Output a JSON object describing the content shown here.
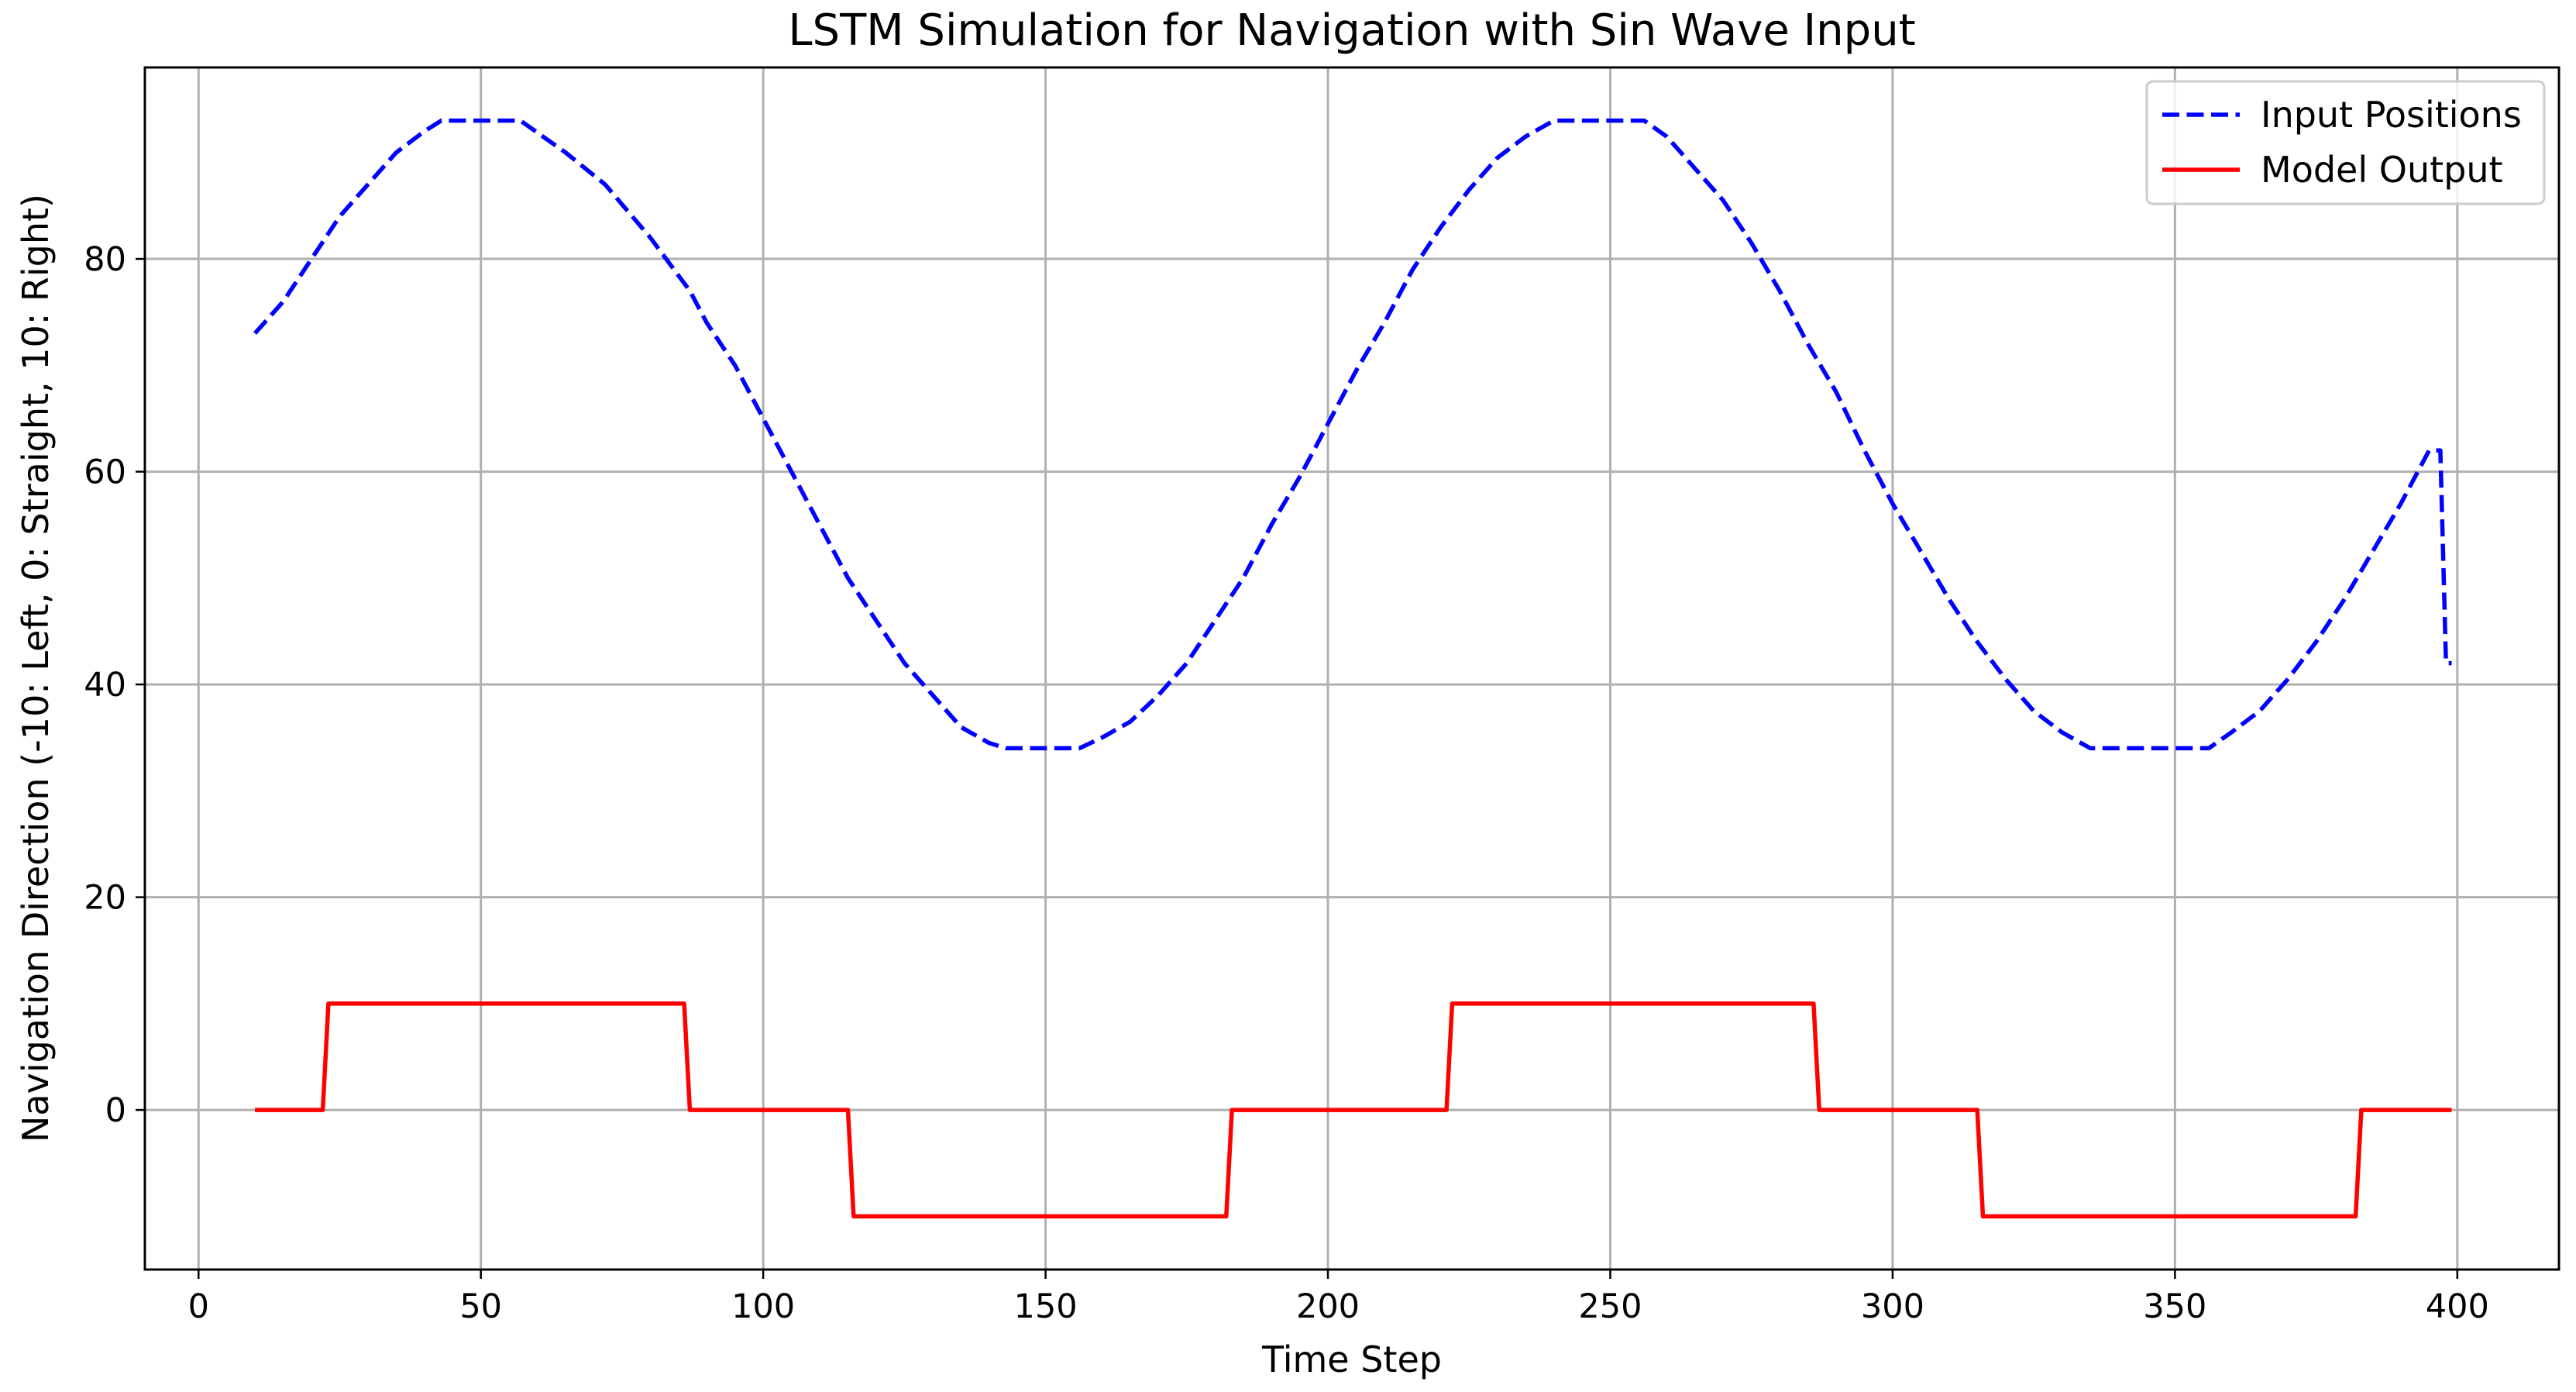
{
  "chart_data": {
    "type": "line",
    "title": "LSTM Simulation for Navigation with Sin Wave Input",
    "xlabel": "Time Step",
    "ylabel": "Navigation Direction (-10: Left, 0: Straight, 10: Right)",
    "xlim": [
      -9.5,
      418
    ],
    "ylim": [
      -15,
      98
    ],
    "xticks": [
      0,
      50,
      100,
      150,
      200,
      250,
      300,
      350,
      400
    ],
    "yticks": [
      0,
      20,
      40,
      60,
      80
    ],
    "grid": true,
    "legend_position": "upper-right",
    "series": [
      {
        "name": "Input Positions",
        "color": "#0000ff",
        "style": "dashed",
        "x": [
          10,
          15,
          20,
          25,
          30,
          35,
          40,
          43,
          50,
          57,
          65,
          72,
          80,
          87,
          90,
          95,
          100,
          105,
          110,
          115,
          120,
          125,
          130,
          135,
          140,
          143,
          150,
          156,
          160,
          165,
          170,
          175,
          180,
          185,
          190,
          195,
          200,
          205,
          210,
          215,
          220,
          225,
          230,
          235,
          240,
          244,
          250,
          256,
          260,
          265,
          270,
          275,
          280,
          285,
          290,
          295,
          300,
          305,
          310,
          315,
          320,
          325,
          330,
          335,
          340,
          343,
          350,
          356,
          360,
          365,
          370,
          375,
          380,
          385,
          390,
          395,
          397,
          398,
          399
        ],
        "y": [
          73,
          76,
          80,
          84,
          87,
          90,
          92,
          93,
          93,
          93,
          90,
          87,
          82,
          77,
          74,
          70,
          65,
          60,
          55,
          50,
          46,
          42,
          39,
          36,
          34.5,
          34,
          34,
          34,
          35,
          36.5,
          39,
          42,
          46,
          50,
          55,
          59.5,
          64.5,
          69.5,
          74,
          79,
          83,
          86.5,
          89.5,
          91.5,
          93,
          93,
          93,
          93,
          91.5,
          88.5,
          85.5,
          81.5,
          77,
          72,
          67.5,
          62,
          57,
          52.5,
          48,
          44,
          40.5,
          37.5,
          35.5,
          34,
          34,
          34,
          34,
          34,
          35.5,
          37.5,
          40.5,
          44,
          48,
          52.5,
          57,
          62,
          62,
          42,
          42
        ]
      },
      {
        "name": "Model Output",
        "color": "#ff0000",
        "style": "solid",
        "x": [
          10,
          22,
          23,
          86,
          87,
          115,
          116,
          182,
          183,
          221,
          222,
          286,
          287,
          315,
          316,
          382,
          383,
          399
        ],
        "y": [
          0,
          0,
          10,
          10,
          0,
          0,
          -10,
          -10,
          0,
          0,
          10,
          10,
          0,
          0,
          -10,
          -10,
          0,
          0
        ]
      }
    ]
  }
}
